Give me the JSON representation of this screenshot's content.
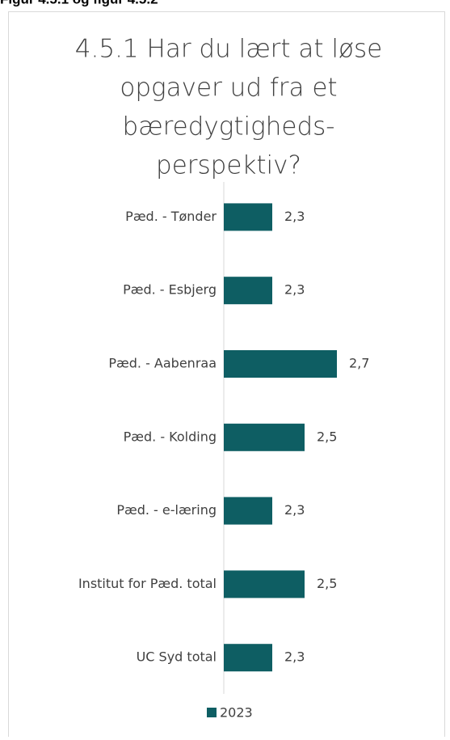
{
  "caption": "Figur 4.5.1 og figur 4.5.2",
  "chart_data": {
    "type": "bar",
    "orientation": "horizontal",
    "title": [
      "4.5.1 Har du lært at løse",
      "opgaver ud fra et",
      "bæredygtigheds-",
      "perspektiv?"
    ],
    "categories": [
      "Pæd. - Tønder",
      "Pæd. - Esbjerg",
      "Pæd. - Aabenraa",
      "Pæd. - Kolding",
      "Pæd. - e-læring",
      "Institut for Pæd. total",
      "UC Syd total"
    ],
    "series": [
      {
        "name": "2023",
        "color": "#0e5e63",
        "values": [
          2.3,
          2.3,
          2.7,
          2.5,
          2.3,
          2.5,
          2.3
        ],
        "value_labels": [
          "2,3",
          "2,3",
          "2,7",
          "2,5",
          "2,3",
          "2,5",
          "2,3"
        ]
      }
    ],
    "xlim": [
      2,
      3
    ],
    "legend": "bottom"
  }
}
